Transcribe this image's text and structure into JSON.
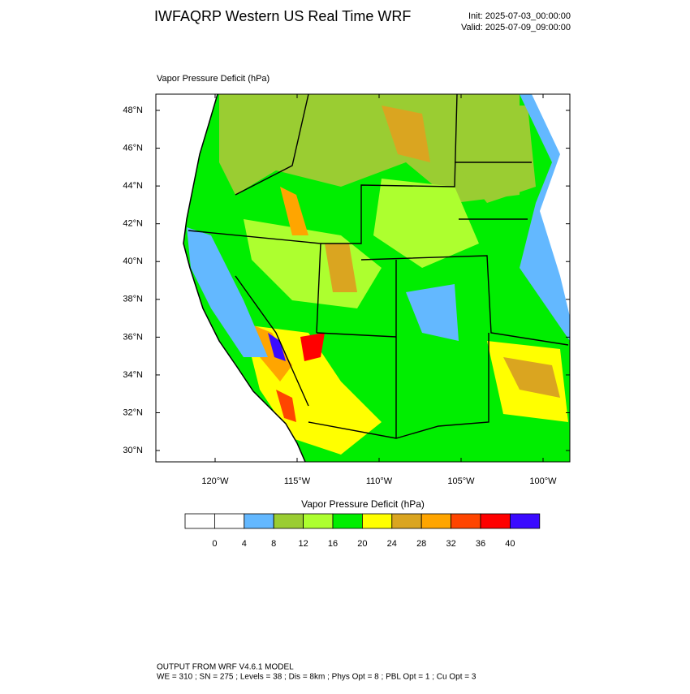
{
  "header": {
    "title": "IWFAQRP Western US Real Time WRF",
    "init": "Init: 2025-07-03_00:00:00",
    "valid": "Valid: 2025-07-09_09:00:00"
  },
  "map": {
    "subtitle": "Vapor Pressure Deficit   (hPa)",
    "lat_ticks": [
      {
        "value": 48,
        "label": "48°N"
      },
      {
        "value": 46,
        "label": "46°N"
      },
      {
        "value": 44,
        "label": "44°N"
      },
      {
        "value": 42,
        "label": "42°N"
      },
      {
        "value": 40,
        "label": "40°N"
      },
      {
        "value": 38,
        "label": "38°N"
      },
      {
        "value": 36,
        "label": "36°N"
      },
      {
        "value": 34,
        "label": "34°N"
      },
      {
        "value": 32,
        "label": "32°N"
      },
      {
        "value": 30,
        "label": "30°N"
      }
    ],
    "lon_ticks": [
      {
        "value": -120,
        "label": "120°W"
      },
      {
        "value": -115,
        "label": "115°W"
      },
      {
        "value": -110,
        "label": "110°W"
      },
      {
        "value": -105,
        "label": "105°W"
      },
      {
        "value": -100,
        "label": "100°W"
      }
    ]
  },
  "colorbar": {
    "title": "Vapor Pressure Deficit  (hPa)",
    "levels": [
      0,
      4,
      8,
      12,
      16,
      20,
      24,
      28,
      32,
      36,
      40
    ],
    "colors": [
      "#ffffff",
      "#ffffff",
      "#63b8ff",
      "#9acd32",
      "#adff2f",
      "#00ee00",
      "#ffff00",
      "#daa520",
      "#ffa500",
      "#ff4500",
      "#ff0000",
      "#3a0aff"
    ]
  },
  "footer": {
    "line1": "OUTPUT FROM WRF V4.6.1 MODEL",
    "line2": "WE = 310 ; SN = 275 ; Levels = 38 ; Dis = 8km ; Phys Opt = 8 ; PBL Opt = 1 ; Cu Opt = 3"
  }
}
